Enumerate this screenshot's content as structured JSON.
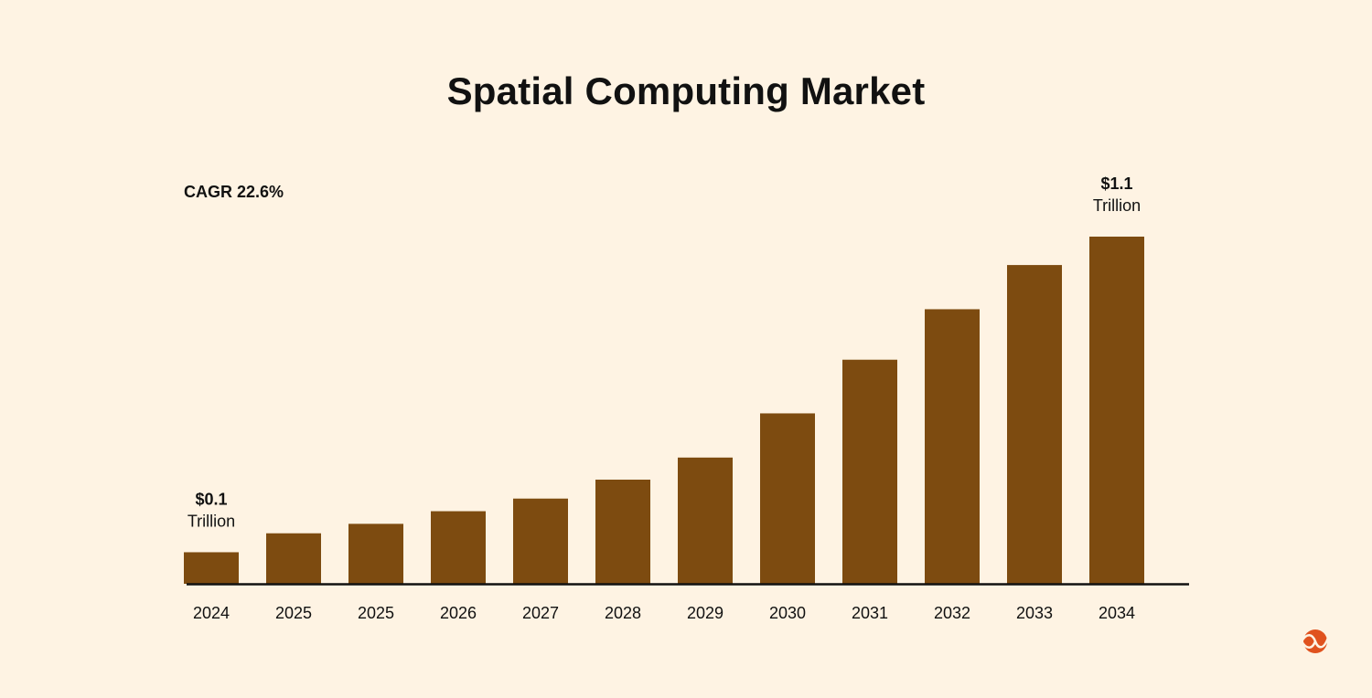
{
  "chart_data": {
    "type": "bar",
    "title": "Spatial Computing Market",
    "annotation": "CAGR 22.6%",
    "categories": [
      "2024",
      "2025",
      "2025",
      "2026",
      "2027",
      "2028",
      "2029",
      "2030",
      "2031",
      "2032",
      "2033",
      "2034"
    ],
    "values": [
      0.1,
      0.16,
      0.19,
      0.23,
      0.27,
      0.33,
      0.4,
      0.54,
      0.71,
      0.87,
      1.01,
      1.1
    ],
    "unit": "Trillion USD",
    "data_labels": [
      {
        "index": 0,
        "line1": "$0.1",
        "line2": "Trillion"
      },
      {
        "index": 11,
        "line1": "$1.1",
        "line2": "Trillion"
      }
    ],
    "xlabel": "",
    "ylabel": "",
    "ylim": [
      0,
      1.1
    ],
    "grid": false,
    "legend": "none",
    "colors": {
      "bar": "#7d4b10",
      "background": "#fef3e3",
      "axis": "#111111",
      "logo": "#e0521e"
    }
  }
}
